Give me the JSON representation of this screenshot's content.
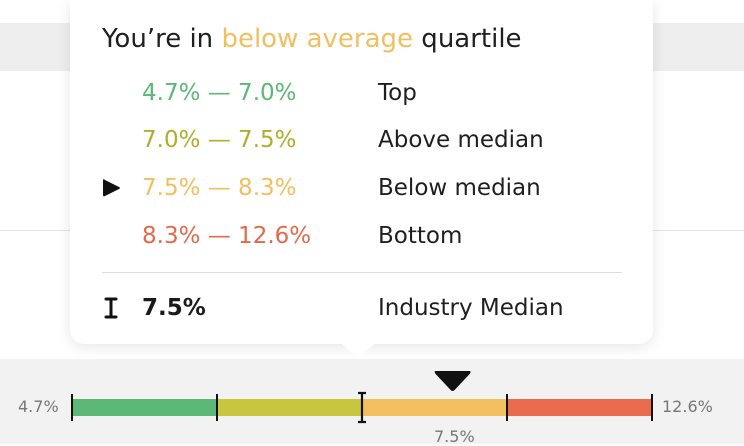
{
  "headline": {
    "prefix": "You’re in ",
    "highlight": "below average",
    "suffix": " quartile",
    "highlight_color": "#f2bf5e"
  },
  "quartiles": [
    {
      "range": "4.7% — 7.0%",
      "label": "Top",
      "color": "#5cb876",
      "current": false
    },
    {
      "range": "7.0% — 7.5%",
      "label": "Above median",
      "color": "#b0ae2a",
      "current": false
    },
    {
      "range": "7.5% — 8.3%",
      "label": "Below median",
      "color": "#f2bf5e",
      "current": true
    },
    {
      "range": "8.3% — 12.6%",
      "label": "Bottom",
      "color": "#e3694a",
      "current": false
    }
  ],
  "median": {
    "value": "7.5%",
    "label": "Industry Median",
    "icon": "i-beam-median-icon"
  },
  "current_marker_icon": "triangle-right-icon",
  "scale": {
    "min_label": "4.7%",
    "max_label": "12.6%",
    "median_label": "7.5%",
    "min": 4.7,
    "max": 12.6,
    "median": 7.5,
    "current_value": 8.0,
    "segments": [
      {
        "from": 4.7,
        "to": 7.0,
        "color": "#5cb876"
      },
      {
        "from": 7.0,
        "to": 7.5,
        "color": "#c8c53f"
      },
      {
        "from": 7.5,
        "to": 8.3,
        "color": "#f2bf5e"
      },
      {
        "from": 8.3,
        "to": 12.6,
        "color": "#e86b4e"
      }
    ]
  }
}
